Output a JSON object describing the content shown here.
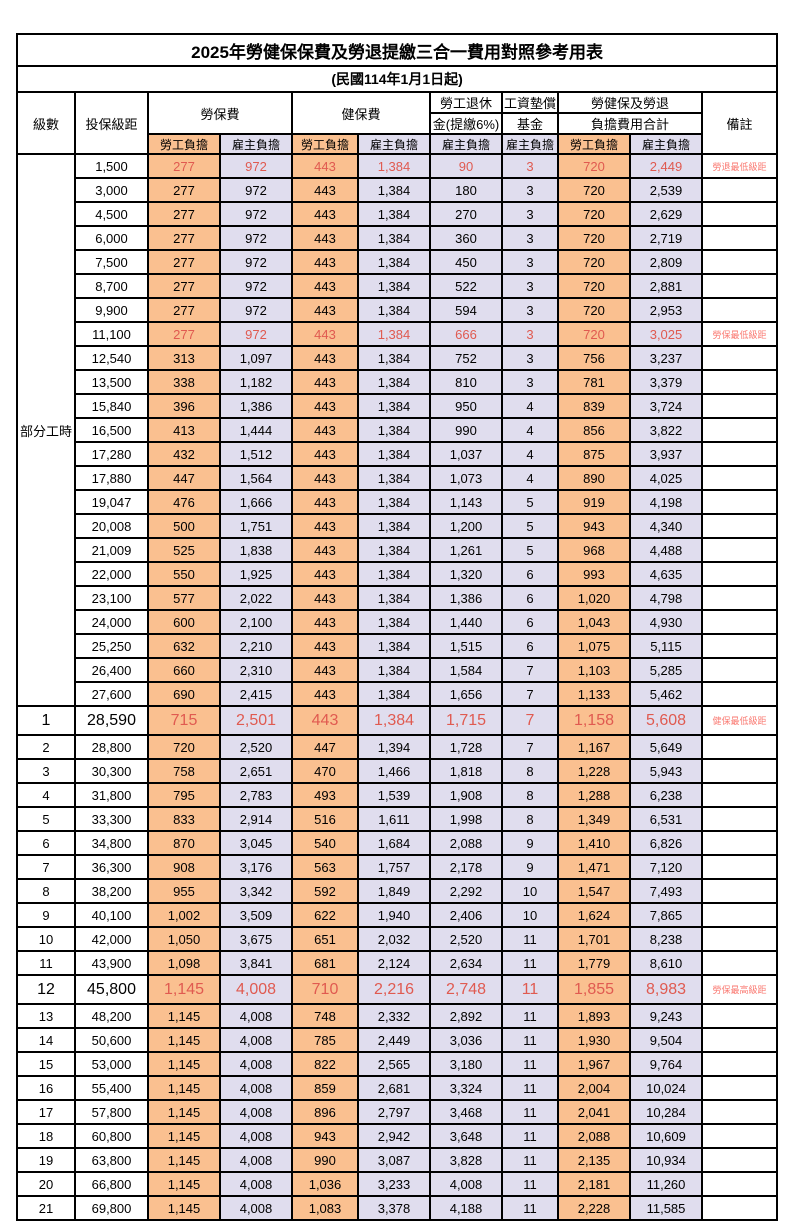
{
  "title": "2025年勞健保保費及勞退提繳三合一費用對照參考用表",
  "subtitle": "(民國114年1月1日起)",
  "header": {
    "level": "級數",
    "bracket": "投保級距",
    "labor_ins": "勞保費",
    "health_ins": "健保費",
    "pension_line1": "勞工退休",
    "pension_line2": "金(提繳6%)",
    "wage_fund_line1": "工資墊償",
    "wage_fund_line2": "基金",
    "total_line1": "勞健保及勞退",
    "total_line2": "負擔費用合計",
    "remark": "備註",
    "employee_burden": "勞工負擔",
    "employer_burden": "雇主負擔"
  },
  "colors": {
    "employee_bg": "#FAC090",
    "employer_bg": "#E0DDEE",
    "highlight_value_red": "#E05A50",
    "remark_red": "#FA7A72"
  },
  "level_group": {
    "label": "部分工時",
    "rowspan": 23
  },
  "rows": [
    {
      "level": "",
      "bracket": "1,500",
      "values": [
        "277",
        "972",
        "443",
        "1,384",
        "90",
        "3",
        "720",
        "2,449"
      ],
      "remark": "勞退最低級距",
      "red": true,
      "big": false
    },
    {
      "level": "",
      "bracket": "3,000",
      "values": [
        "277",
        "972",
        "443",
        "1,384",
        "180",
        "3",
        "720",
        "2,539"
      ],
      "remark": "",
      "red": false,
      "big": false
    },
    {
      "level": "",
      "bracket": "4,500",
      "values": [
        "277",
        "972",
        "443",
        "1,384",
        "270",
        "3",
        "720",
        "2,629"
      ],
      "remark": "",
      "red": false,
      "big": false
    },
    {
      "level": "",
      "bracket": "6,000",
      "values": [
        "277",
        "972",
        "443",
        "1,384",
        "360",
        "3",
        "720",
        "2,719"
      ],
      "remark": "",
      "red": false,
      "big": false
    },
    {
      "level": "",
      "bracket": "7,500",
      "values": [
        "277",
        "972",
        "443",
        "1,384",
        "450",
        "3",
        "720",
        "2,809"
      ],
      "remark": "",
      "red": false,
      "big": false
    },
    {
      "level": "",
      "bracket": "8,700",
      "values": [
        "277",
        "972",
        "443",
        "1,384",
        "522",
        "3",
        "720",
        "2,881"
      ],
      "remark": "",
      "red": false,
      "big": false
    },
    {
      "level": "",
      "bracket": "9,900",
      "values": [
        "277",
        "972",
        "443",
        "1,384",
        "594",
        "3",
        "720",
        "2,953"
      ],
      "remark": "",
      "red": false,
      "big": false
    },
    {
      "level": "",
      "bracket": "11,100",
      "values": [
        "277",
        "972",
        "443",
        "1,384",
        "666",
        "3",
        "720",
        "3,025"
      ],
      "remark": "勞保最低級距",
      "red": true,
      "big": false
    },
    {
      "level": "",
      "bracket": "12,540",
      "values": [
        "313",
        "1,097",
        "443",
        "1,384",
        "752",
        "3",
        "756",
        "3,237"
      ],
      "remark": "",
      "red": false,
      "big": false
    },
    {
      "level": "",
      "bracket": "13,500",
      "values": [
        "338",
        "1,182",
        "443",
        "1,384",
        "810",
        "3",
        "781",
        "3,379"
      ],
      "remark": "",
      "red": false,
      "big": false
    },
    {
      "level": "",
      "bracket": "15,840",
      "values": [
        "396",
        "1,386",
        "443",
        "1,384",
        "950",
        "4",
        "839",
        "3,724"
      ],
      "remark": "",
      "red": false,
      "big": false
    },
    {
      "level": "",
      "bracket": "16,500",
      "values": [
        "413",
        "1,444",
        "443",
        "1,384",
        "990",
        "4",
        "856",
        "3,822"
      ],
      "remark": "",
      "red": false,
      "big": false
    },
    {
      "level": "",
      "bracket": "17,280",
      "values": [
        "432",
        "1,512",
        "443",
        "1,384",
        "1,037",
        "4",
        "875",
        "3,937"
      ],
      "remark": "",
      "red": false,
      "big": false
    },
    {
      "level": "",
      "bracket": "17,880",
      "values": [
        "447",
        "1,564",
        "443",
        "1,384",
        "1,073",
        "4",
        "890",
        "4,025"
      ],
      "remark": "",
      "red": false,
      "big": false
    },
    {
      "level": "",
      "bracket": "19,047",
      "values": [
        "476",
        "1,666",
        "443",
        "1,384",
        "1,143",
        "5",
        "919",
        "4,198"
      ],
      "remark": "",
      "red": false,
      "big": false
    },
    {
      "level": "",
      "bracket": "20,008",
      "values": [
        "500",
        "1,751",
        "443",
        "1,384",
        "1,200",
        "5",
        "943",
        "4,340"
      ],
      "remark": "",
      "red": false,
      "big": false
    },
    {
      "level": "",
      "bracket": "21,009",
      "values": [
        "525",
        "1,838",
        "443",
        "1,384",
        "1,261",
        "5",
        "968",
        "4,488"
      ],
      "remark": "",
      "red": false,
      "big": false
    },
    {
      "level": "",
      "bracket": "22,000",
      "values": [
        "550",
        "1,925",
        "443",
        "1,384",
        "1,320",
        "6",
        "993",
        "4,635"
      ],
      "remark": "",
      "red": false,
      "big": false
    },
    {
      "level": "",
      "bracket": "23,100",
      "values": [
        "577",
        "2,022",
        "443",
        "1,384",
        "1,386",
        "6",
        "1,020",
        "4,798"
      ],
      "remark": "",
      "red": false,
      "big": false
    },
    {
      "level": "",
      "bracket": "24,000",
      "values": [
        "600",
        "2,100",
        "443",
        "1,384",
        "1,440",
        "6",
        "1,043",
        "4,930"
      ],
      "remark": "",
      "red": false,
      "big": false
    },
    {
      "level": "",
      "bracket": "25,250",
      "values": [
        "632",
        "2,210",
        "443",
        "1,384",
        "1,515",
        "6",
        "1,075",
        "5,115"
      ],
      "remark": "",
      "red": false,
      "big": false
    },
    {
      "level": "",
      "bracket": "26,400",
      "values": [
        "660",
        "2,310",
        "443",
        "1,384",
        "1,584",
        "7",
        "1,103",
        "5,285"
      ],
      "remark": "",
      "red": false,
      "big": false
    },
    {
      "level": "",
      "bracket": "27,600",
      "values": [
        "690",
        "2,415",
        "443",
        "1,384",
        "1,656",
        "7",
        "1,133",
        "5,462"
      ],
      "remark": "",
      "red": false,
      "big": false
    },
    {
      "level": "1",
      "bracket": "28,590",
      "values": [
        "715",
        "2,501",
        "443",
        "1,384",
        "1,715",
        "7",
        "1,158",
        "5,608"
      ],
      "remark": "健保最低級距",
      "red": true,
      "big": true
    },
    {
      "level": "2",
      "bracket": "28,800",
      "values": [
        "720",
        "2,520",
        "447",
        "1,394",
        "1,728",
        "7",
        "1,167",
        "5,649"
      ],
      "remark": "",
      "red": false,
      "big": false
    },
    {
      "level": "3",
      "bracket": "30,300",
      "values": [
        "758",
        "2,651",
        "470",
        "1,466",
        "1,818",
        "8",
        "1,228",
        "5,943"
      ],
      "remark": "",
      "red": false,
      "big": false
    },
    {
      "level": "4",
      "bracket": "31,800",
      "values": [
        "795",
        "2,783",
        "493",
        "1,539",
        "1,908",
        "8",
        "1,288",
        "6,238"
      ],
      "remark": "",
      "red": false,
      "big": false
    },
    {
      "level": "5",
      "bracket": "33,300",
      "values": [
        "833",
        "2,914",
        "516",
        "1,611",
        "1,998",
        "8",
        "1,349",
        "6,531"
      ],
      "remark": "",
      "red": false,
      "big": false
    },
    {
      "level": "6",
      "bracket": "34,800",
      "values": [
        "870",
        "3,045",
        "540",
        "1,684",
        "2,088",
        "9",
        "1,410",
        "6,826"
      ],
      "remark": "",
      "red": false,
      "big": false
    },
    {
      "level": "7",
      "bracket": "36,300",
      "values": [
        "908",
        "3,176",
        "563",
        "1,757",
        "2,178",
        "9",
        "1,471",
        "7,120"
      ],
      "remark": "",
      "red": false,
      "big": false
    },
    {
      "level": "8",
      "bracket": "38,200",
      "values": [
        "955",
        "3,342",
        "592",
        "1,849",
        "2,292",
        "10",
        "1,547",
        "7,493"
      ],
      "remark": "",
      "red": false,
      "big": false
    },
    {
      "level": "9",
      "bracket": "40,100",
      "values": [
        "1,002",
        "3,509",
        "622",
        "1,940",
        "2,406",
        "10",
        "1,624",
        "7,865"
      ],
      "remark": "",
      "red": false,
      "big": false
    },
    {
      "level": "10",
      "bracket": "42,000",
      "values": [
        "1,050",
        "3,675",
        "651",
        "2,032",
        "2,520",
        "11",
        "1,701",
        "8,238"
      ],
      "remark": "",
      "red": false,
      "big": false
    },
    {
      "level": "11",
      "bracket": "43,900",
      "values": [
        "1,098",
        "3,841",
        "681",
        "2,124",
        "2,634",
        "11",
        "1,779",
        "8,610"
      ],
      "remark": "",
      "red": false,
      "big": false
    },
    {
      "level": "12",
      "bracket": "45,800",
      "values": [
        "1,145",
        "4,008",
        "710",
        "2,216",
        "2,748",
        "11",
        "1,855",
        "8,983"
      ],
      "remark": "勞保最高級距",
      "red": true,
      "big": true
    },
    {
      "level": "13",
      "bracket": "48,200",
      "values": [
        "1,145",
        "4,008",
        "748",
        "2,332",
        "2,892",
        "11",
        "1,893",
        "9,243"
      ],
      "remark": "",
      "red": false,
      "big": false
    },
    {
      "level": "14",
      "bracket": "50,600",
      "values": [
        "1,145",
        "4,008",
        "785",
        "2,449",
        "3,036",
        "11",
        "1,930",
        "9,504"
      ],
      "remark": "",
      "red": false,
      "big": false
    },
    {
      "level": "15",
      "bracket": "53,000",
      "values": [
        "1,145",
        "4,008",
        "822",
        "2,565",
        "3,180",
        "11",
        "1,967",
        "9,764"
      ],
      "remark": "",
      "red": false,
      "big": false
    },
    {
      "level": "16",
      "bracket": "55,400",
      "values": [
        "1,145",
        "4,008",
        "859",
        "2,681",
        "3,324",
        "11",
        "2,004",
        "10,024"
      ],
      "remark": "",
      "red": false,
      "big": false
    },
    {
      "level": "17",
      "bracket": "57,800",
      "values": [
        "1,145",
        "4,008",
        "896",
        "2,797",
        "3,468",
        "11",
        "2,041",
        "10,284"
      ],
      "remark": "",
      "red": false,
      "big": false
    },
    {
      "level": "18",
      "bracket": "60,800",
      "values": [
        "1,145",
        "4,008",
        "943",
        "2,942",
        "3,648",
        "11",
        "2,088",
        "10,609"
      ],
      "remark": "",
      "red": false,
      "big": false
    },
    {
      "level": "19",
      "bracket": "63,800",
      "values": [
        "1,145",
        "4,008",
        "990",
        "3,087",
        "3,828",
        "11",
        "2,135",
        "10,934"
      ],
      "remark": "",
      "red": false,
      "big": false
    },
    {
      "level": "20",
      "bracket": "66,800",
      "values": [
        "1,145",
        "4,008",
        "1,036",
        "3,233",
        "4,008",
        "11",
        "2,181",
        "11,260"
      ],
      "remark": "",
      "red": false,
      "big": false
    },
    {
      "level": "21",
      "bracket": "69,800",
      "values": [
        "1,145",
        "4,008",
        "1,083",
        "3,378",
        "4,188",
        "11",
        "2,228",
        "11,585"
      ],
      "remark": "",
      "red": false,
      "big": false
    }
  ]
}
